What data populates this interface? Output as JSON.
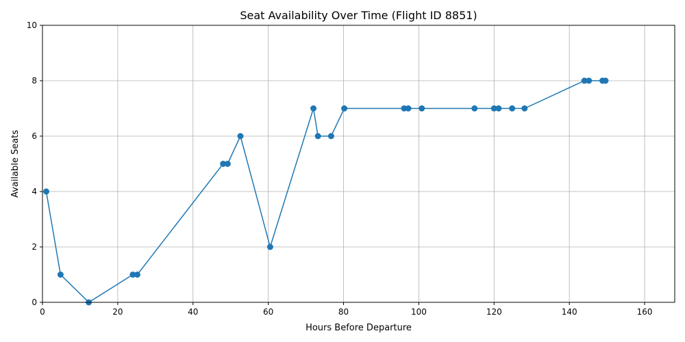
{
  "chart_data": {
    "type": "line",
    "title": "Seat Availability Over Time (Flight ID 8851)",
    "xlabel": "Hours Before Departure",
    "ylabel": "Available Seats",
    "xlim": [
      0,
      168
    ],
    "ylim": [
      0,
      10
    ],
    "xticks": [
      0,
      20,
      40,
      60,
      80,
      100,
      120,
      140,
      160
    ],
    "yticks": [
      0,
      2,
      4,
      6,
      8,
      10
    ],
    "grid": true,
    "color": "#1f77b4",
    "marker": "circle",
    "series": [
      {
        "x": [
          1.0,
          4.8,
          12.3,
          24.0,
          25.2,
          48.0,
          49.2,
          52.6,
          60.5,
          72.0,
          73.2,
          76.7,
          80.2,
          96.1,
          97.2,
          100.8,
          114.8,
          120.0,
          121.2,
          124.8,
          128.1,
          144.0,
          145.2,
          148.8,
          149.6
        ],
        "y": [
          4,
          1,
          0,
          1,
          1,
          5,
          5,
          6,
          2,
          7,
          6,
          6,
          7,
          7,
          7,
          7,
          7,
          7,
          7,
          7,
          7,
          8,
          8,
          8,
          8
        ]
      }
    ]
  }
}
